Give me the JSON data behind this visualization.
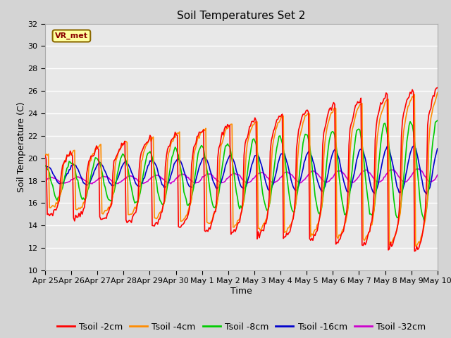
{
  "title": "Soil Temperatures Set 2",
  "xlabel": "Time",
  "ylabel": "Soil Temperature (C)",
  "ylim": [
    10,
    32
  ],
  "yticks": [
    10,
    12,
    14,
    16,
    18,
    20,
    22,
    24,
    26,
    28,
    30,
    32
  ],
  "xtick_labels": [
    "Apr 25",
    "Apr 26",
    "Apr 27",
    "Apr 28",
    "Apr 29",
    "Apr 30",
    "May 1",
    "May 2",
    "May 3",
    "May 4",
    "May 5",
    "May 6",
    "May 7",
    "May 8",
    "May 9",
    "May 10"
  ],
  "colors": {
    "Tsoil -2cm": "#ff0000",
    "Tsoil -4cm": "#ff8c00",
    "Tsoil -8cm": "#00cc00",
    "Tsoil -16cm": "#0000cc",
    "Tsoil -32cm": "#cc00cc"
  },
  "legend_label": "VR_met",
  "fig_facecolor": "#d4d4d4",
  "plot_facecolor": "#e8e8e8",
  "grid_color": "#ffffff",
  "title_fontsize": 11,
  "axis_fontsize": 9,
  "tick_fontsize": 8,
  "legend_fontsize": 9,
  "line_width": 1.2
}
